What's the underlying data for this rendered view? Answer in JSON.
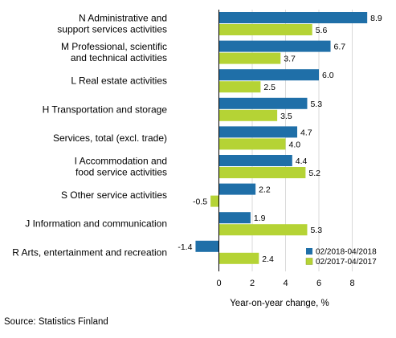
{
  "chart_data": {
    "type": "bar",
    "orientation": "horizontal",
    "categories": [
      [
        "N Administrative and",
        "support services activities"
      ],
      [
        "M Professional, scientific",
        "and technical activities"
      ],
      [
        "L Real estate activities"
      ],
      [
        "H Transportation and storage"
      ],
      [
        "Services, total (excl. trade)"
      ],
      [
        "I Accommodation and",
        "food service activities"
      ],
      [
        "S Other service activities"
      ],
      [
        "J Information and communication"
      ],
      [
        "R Arts, entertainment and recreation"
      ]
    ],
    "series": [
      {
        "name": "02/2018-04/2018",
        "color": "#1f6fa8",
        "values": [
          8.9,
          6.7,
          6.0,
          5.3,
          4.7,
          4.4,
          2.2,
          1.9,
          -1.4
        ],
        "labels": [
          "8.9",
          "6.7",
          "6.0",
          "5.3",
          "4.7",
          "4.4",
          "2.2",
          "1.9",
          "-1.4"
        ]
      },
      {
        "name": "02/2017-04/2017",
        "color": "#b5d335",
        "values": [
          5.6,
          3.7,
          2.5,
          3.5,
          4.0,
          5.2,
          -0.5,
          5.3,
          2.4
        ],
        "labels": [
          "5.6",
          "3.7",
          "2.5",
          "3.5",
          "4.0",
          "5.2",
          "-0.5",
          "5.3",
          "2.4"
        ]
      }
    ],
    "xlim": [
      -2.2,
      10
    ],
    "xticks": [
      0,
      2,
      4,
      6,
      8
    ],
    "xtick_labels": [
      "0",
      "2",
      "4",
      "6",
      "8"
    ],
    "xlabel": "Year-on-year change, %",
    "legend_position": "bottom-right",
    "grid": "vertical"
  },
  "source": "Source: Statistics Finland"
}
